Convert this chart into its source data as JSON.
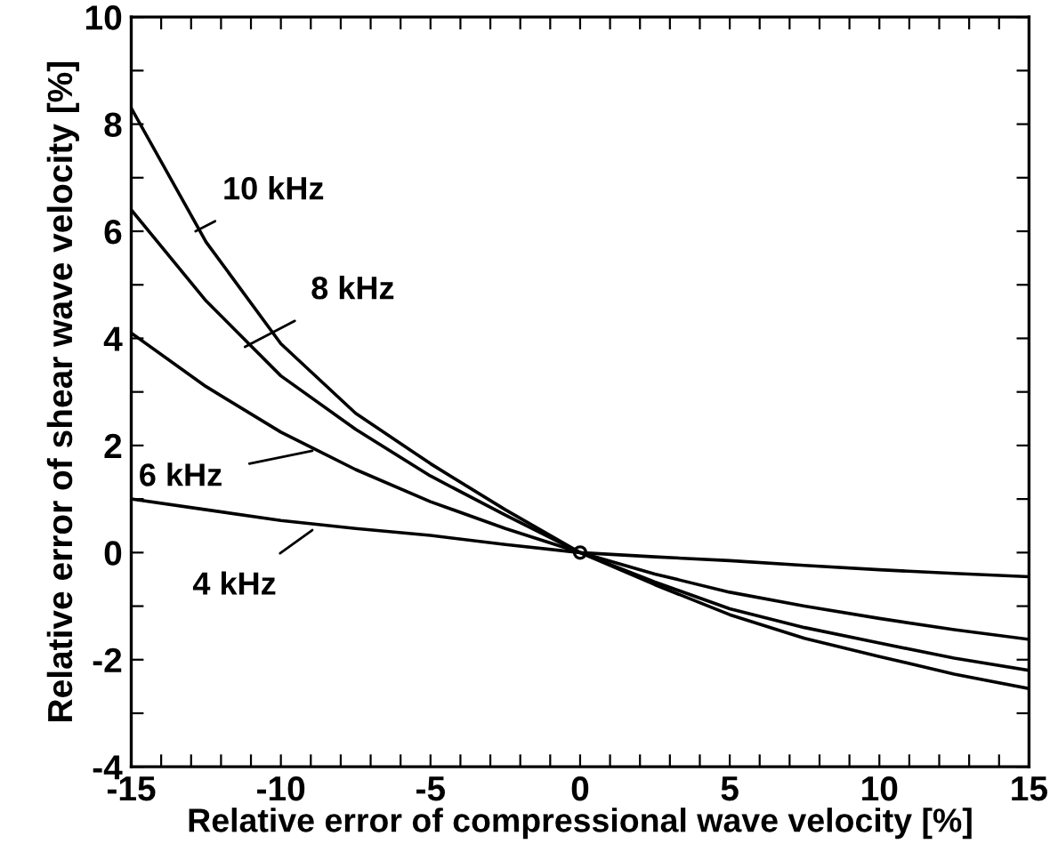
{
  "chart_data": {
    "type": "line",
    "xlabel": "Relative error of compressional wave velocity [%]",
    "ylabel": "Relative error of shear wave velocity [%]",
    "x": [
      -15,
      -12.5,
      -10,
      -7.5,
      -5,
      -2.5,
      0,
      2.5,
      5,
      7.5,
      10,
      12.5,
      15
    ],
    "series": [
      {
        "color": "#000000",
        "values": [
          8.3,
          5.8,
          3.9,
          2.6,
          1.66,
          0.8,
          0,
          -0.6,
          -1.16,
          -1.6,
          -1.94,
          -2.27,
          -2.54
        ]
      },
      {
        "color": "#000000",
        "values": [
          6.4,
          4.7,
          3.3,
          2.3,
          1.43,
          0.7,
          0,
          -0.55,
          -1.05,
          -1.4,
          -1.69,
          -1.97,
          -2.2
        ]
      },
      {
        "color": "#000000",
        "values": [
          4.1,
          3.1,
          2.25,
          1.55,
          0.95,
          0.45,
          0,
          -0.4,
          -0.74,
          -1.0,
          -1.23,
          -1.44,
          -1.62
        ]
      },
      {
        "color": "#000000",
        "values": [
          1.0,
          0.8,
          0.6,
          0.45,
          0.32,
          0.15,
          0,
          -0.08,
          -0.15,
          -0.24,
          -0.32,
          -0.39,
          -0.45
        ]
      },
      {
        "type": "scatter",
        "x": [
          0
        ],
        "color": "#000000",
        "marker": "circle",
        "values": [
          0
        ]
      }
    ],
    "annotations": [
      {
        "text": "10 kHz",
        "x": -12.85,
        "y": 6.0
      },
      {
        "text": "8 kHz",
        "x": -11.2,
        "y": 3.84
      },
      {
        "text": "6 kHz",
        "x": -8.95,
        "y": 1.9
      },
      {
        "text": "4 kHz",
        "x": -8.95,
        "y": 0.42
      }
    ],
    "xlim": [
      -15,
      15
    ],
    "ylim": [
      -4,
      10
    ],
    "xticks": [
      -15,
      {
        "value": -14,
        "label": null
      },
      {
        "value": -13,
        "label": null
      },
      {
        "value": -12,
        "label": null
      },
      {
        "value": -11,
        "label": null
      },
      -10,
      {
        "value": -9,
        "label": null
      },
      {
        "value": -8,
        "label": null
      },
      {
        "value": -7,
        "label": null
      },
      {
        "value": -6,
        "label": null
      },
      -5,
      {
        "value": -4,
        "label": null
      },
      {
        "value": -3,
        "label": null
      },
      {
        "value": -2,
        "label": null
      },
      {
        "value": -1,
        "label": null
      },
      0,
      {
        "value": 1,
        "label": null
      },
      {
        "value": 2,
        "label": null
      },
      {
        "value": 3,
        "label": null
      },
      {
        "value": 4,
        "label": null
      },
      5,
      {
        "value": 6,
        "label": null
      },
      {
        "value": 7,
        "label": null
      },
      {
        "value": 8,
        "label": null
      },
      {
        "value": 9,
        "label": null
      },
      10,
      {
        "value": 11,
        "label": null
      },
      {
        "value": 12,
        "label": null
      },
      {
        "value": 13,
        "label": null
      },
      {
        "value": 14,
        "label": null
      },
      15
    ],
    "yticks": [
      -4,
      {
        "value": -3,
        "label": null
      },
      -2,
      {
        "value": -1,
        "label": null
      },
      0,
      {
        "value": 1,
        "label": null
      },
      2,
      {
        "value": 3,
        "label": null
      },
      4,
      {
        "value": 5,
        "label": null
      },
      6,
      {
        "value": 7,
        "label": null
      },
      8,
      {
        "value": 9,
        "label": null
      },
      10
    ],
    "grid": false,
    "legend": false,
    "marker": "none",
    "line_style": "solid"
  }
}
